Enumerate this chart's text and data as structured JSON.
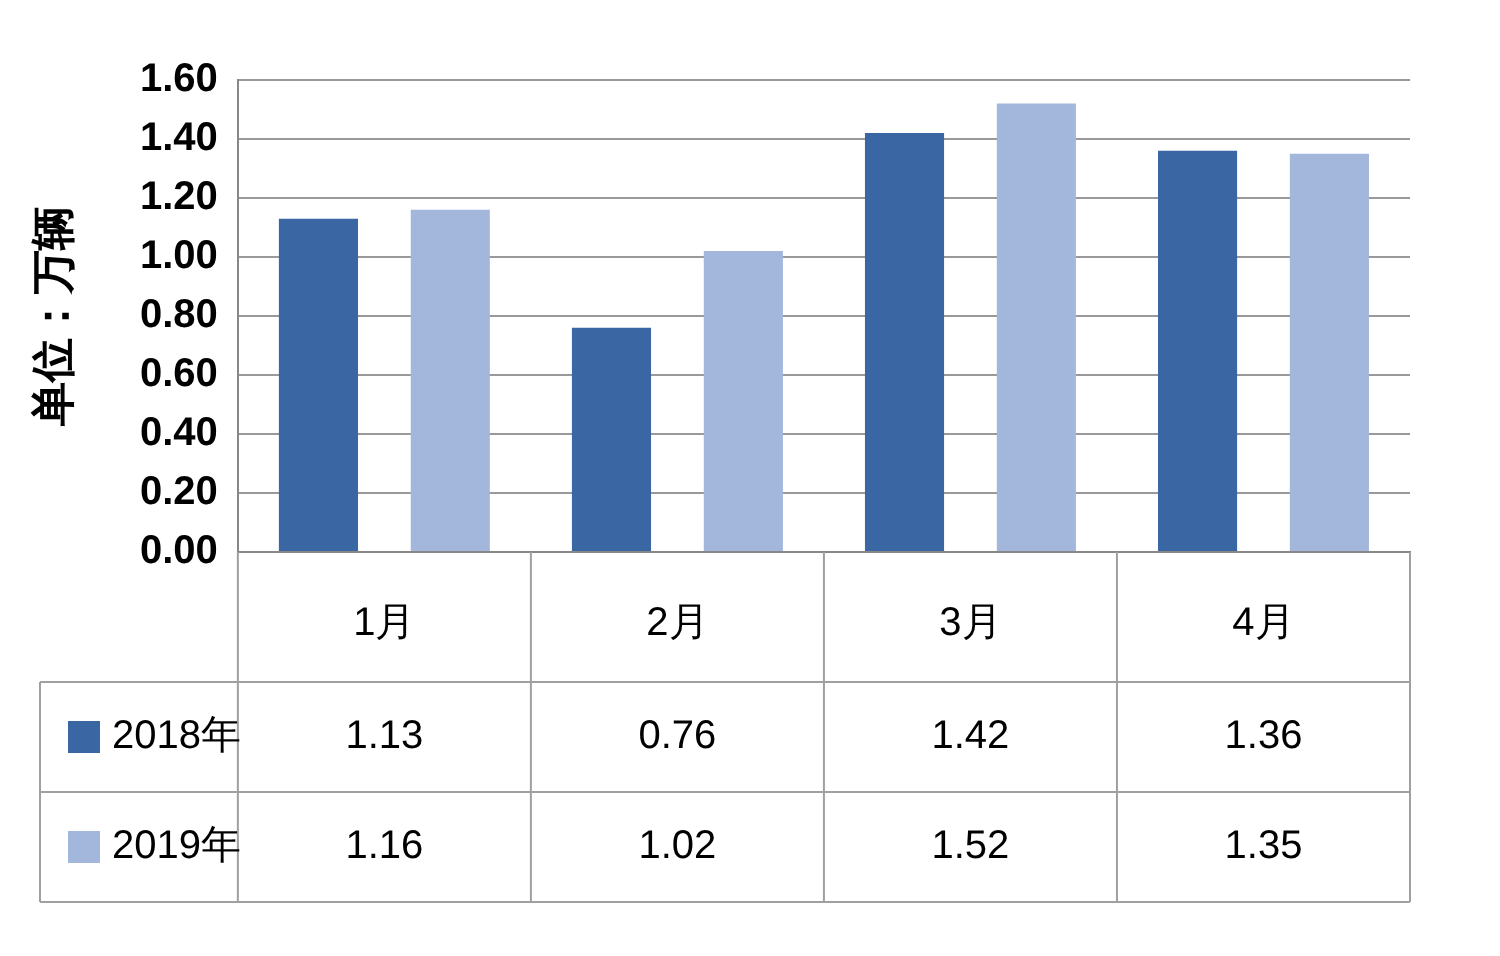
{
  "chart_data": {
    "type": "bar",
    "ylabel": "单位：万辆",
    "categories": [
      "1月",
      "2月",
      "3月",
      "4月"
    ],
    "series": [
      {
        "name": "2018年",
        "color": "#3a67a4",
        "values": [
          1.13,
          0.76,
          1.42,
          1.36
        ]
      },
      {
        "name": "2019年",
        "color": "#a3b7dd",
        "values": [
          1.16,
          1.02,
          1.52,
          1.35
        ]
      }
    ],
    "ylim": [
      0,
      1.6
    ],
    "yticks": [
      {
        "value": 0,
        "label": "0.00"
      },
      {
        "value": 0.2,
        "label": "0.20"
      },
      {
        "value": 0.4,
        "label": "0.40"
      },
      {
        "value": 0.6,
        "label": "0.60"
      },
      {
        "value": 0.8,
        "label": "0.80"
      },
      {
        "value": 1,
        "label": "1.00"
      },
      {
        "value": 1.2,
        "label": "1.20"
      },
      {
        "value": 1.4,
        "label": "1.40"
      },
      {
        "value": 1.6,
        "label": "1.60"
      }
    ],
    "grid": "y",
    "legend": "bottom",
    "data_labels": true
  }
}
